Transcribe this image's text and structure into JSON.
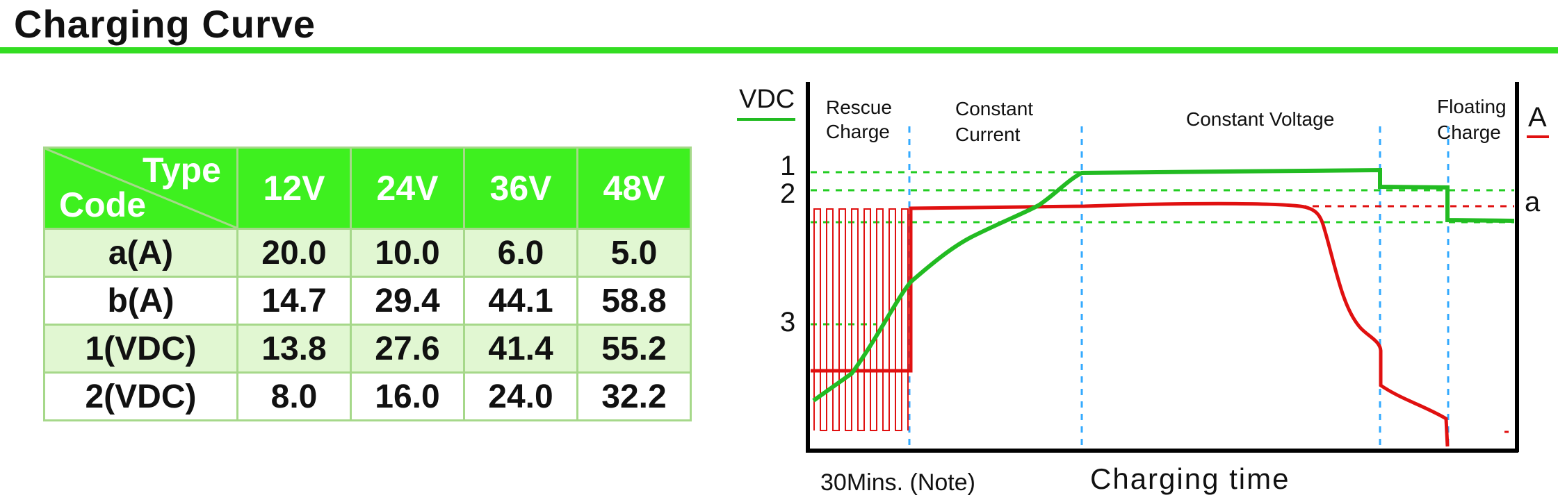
{
  "header": {
    "title": "Charging Curve"
  },
  "table": {
    "corner_top": "Type",
    "corner_bottom": "Code",
    "columns": [
      "12V",
      "24V",
      "36V",
      "48V"
    ],
    "rows": [
      {
        "code": "a(A)",
        "values": [
          "20.0",
          "10.0",
          "6.0",
          "5.0"
        ]
      },
      {
        "code": "b(A)",
        "values": [
          "14.7",
          "29.4",
          "44.1",
          "58.8"
        ]
      },
      {
        "code": "1(VDC)",
        "values": [
          "13.8",
          "27.6",
          "41.4",
          "55.2"
        ]
      },
      {
        "code": "2(VDC)",
        "values": [
          "8.0",
          "16.0",
          "24.0",
          "32.2"
        ]
      }
    ]
  },
  "chart": {
    "left_axis_label": "VDC",
    "right_axis_label": "A",
    "left_ticks": [
      "1",
      "2",
      "3"
    ],
    "right_tick": "a",
    "phases": [
      {
        "line1": "Rescue",
        "line2": "Charge"
      },
      {
        "line1": "Constant",
        "line2": "Current"
      },
      {
        "line1": "Constant Voltage",
        "line2": ""
      },
      {
        "line1": "Floating",
        "line2": "Charge"
      }
    ],
    "note_label": "30Mins. (Note)",
    "x_axis_label": "Charging time",
    "colors": {
      "voltage": "#22bb22",
      "current": "#e01010",
      "phase_divider": "#33aaff"
    }
  }
}
